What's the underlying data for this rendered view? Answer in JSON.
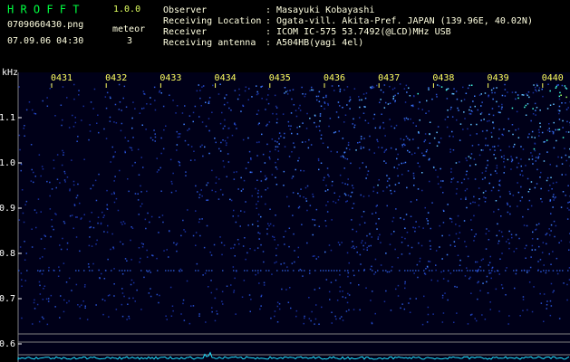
{
  "chart_data": {
    "type": "spectrogram",
    "program": "H R O F F T",
    "version": "1.0.0",
    "file": "0709060430.png",
    "meteor_label": "meteor",
    "date": "07.09.06 04:30",
    "meteor_count": 3,
    "info": [
      {
        "label": "Observer",
        "value": "Masayuki Kobayashi"
      },
      {
        "label": "Receiving Location",
        "value": "Ogata-vill. Akita-Pref. JAPAN (139.96E, 40.02N)"
      },
      {
        "label": "Receiver",
        "value": "ICOM IC-575 53.7492(@LCD)MHz USB"
      },
      {
        "label": "Receiving antenna",
        "value": "A504HB(yagi 4el)"
      }
    ],
    "y_label": "kHz",
    "ylim": [
      0.56,
      1.2
    ],
    "yticks": [
      1.1,
      {
        "value": 1.0,
        "label": "1.0"
      },
      0.9,
      0.8,
      0.7,
      0.6
    ],
    "time_labels": [
      "0431",
      "0432",
      "0433",
      "0434",
      "0435",
      "0436",
      "0437",
      "0438",
      "0439",
      "0440"
    ]
  }
}
